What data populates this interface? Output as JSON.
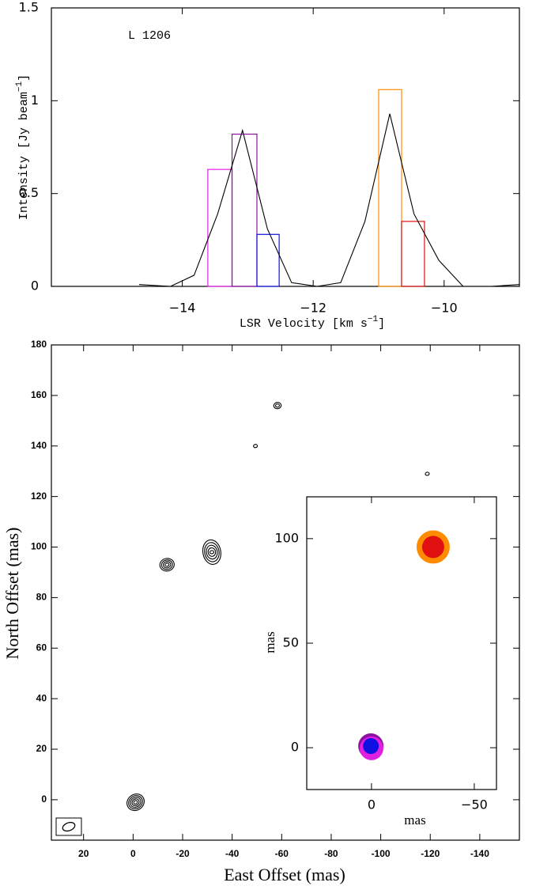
{
  "chart_data": [
    {
      "type": "line",
      "annotation": "L 1206",
      "xlabel": [
        "LSR Velocity [km s",
        "−1",
        "]"
      ],
      "ylabel": [
        "Intensity [Jy beam",
        "−1",
        "]"
      ],
      "xlim": [
        -16,
        -8.85
      ],
      "ylim": [
        0,
        1.5
      ],
      "xticks": [
        {
          "value": -14,
          "label": "−14"
        },
        {
          "value": -12,
          "label": "−12"
        },
        {
          "value": -10,
          "label": "−10"
        }
      ],
      "yticks": [
        0,
        0.5,
        1,
        1.5
      ],
      "x": [
        -14.66,
        -14.18,
        -13.82,
        -13.46,
        -13.08,
        -12.7,
        -12.33,
        -11.94,
        -11.58,
        -11.21,
        -10.83,
        -10.46,
        -10.08,
        -9.71,
        -9.28,
        -8.85
      ],
      "values": [
        0.01,
        0,
        0.06,
        0.39,
        0.84,
        0.31,
        0.02,
        0,
        0.02,
        0.35,
        0.93,
        0.39,
        0.14,
        0,
        0,
        0.01
      ],
      "color": "#000000",
      "bars": {
        "left": [
          -13.61,
          -13.24,
          -12.86,
          -11.0,
          -10.65
        ],
        "right": [
          -13.24,
          -12.86,
          -12.52,
          -10.65,
          -10.3
        ],
        "values": [
          0.63,
          0.82,
          0.28,
          1.06,
          0.35
        ],
        "colors": [
          "#e020e0",
          "#8b10a0",
          "#1010e0",
          "#ff8c00",
          "#e01010"
        ]
      }
    },
    {
      "type": "contour",
      "xlabel": "East Offset (mas)",
      "ylabel": "North Offset (mas)",
      "xlim": [
        33,
        -156
      ],
      "ylim": [
        -16,
        180
      ],
      "xticks": [
        20,
        0,
        -20,
        -40,
        -60,
        -80,
        -100,
        -120,
        -140
      ],
      "yticks": [
        0,
        20,
        40,
        60,
        80,
        100,
        120,
        140,
        160,
        180
      ],
      "x": [
        -1,
        -13.7,
        -31.8,
        -49.4,
        -58.3,
        -118.8
      ],
      "y": [
        -1,
        93,
        98,
        140,
        156,
        129
      ],
      "levels": [
        5,
        4,
        5,
        1,
        2,
        1
      ],
      "color": "#000000"
    },
    {
      "type": "scatter",
      "xlabel": "mas",
      "ylabel": "mas",
      "xlim": [
        31.5,
        -60.8
      ],
      "ylim": [
        -20,
        120
      ],
      "xticks": [
        0,
        {
          "value": -50,
          "label": "−50"
        }
      ],
      "yticks": [
        0,
        50,
        100
      ],
      "series": [
        {
          "color": "#ff8c00",
          "x": [
            -30
          ],
          "y": [
            96
          ],
          "size": [
            21
          ]
        },
        {
          "color": "#e01010",
          "x": [
            -30
          ],
          "y": [
            96
          ],
          "size": [
            14
          ]
        },
        {
          "color": "#8b10a0",
          "x": [
            0.3
          ],
          "y": [
            0.8
          ],
          "size": [
            16
          ]
        },
        {
          "color": "#e020e0",
          "x": [
            0
          ],
          "y": [
            -0.3
          ],
          "size": [
            15
          ]
        },
        {
          "color": "#1010e0",
          "x": [
            0.3
          ],
          "y": [
            0.8
          ],
          "size": [
            10
          ]
        }
      ]
    }
  ]
}
